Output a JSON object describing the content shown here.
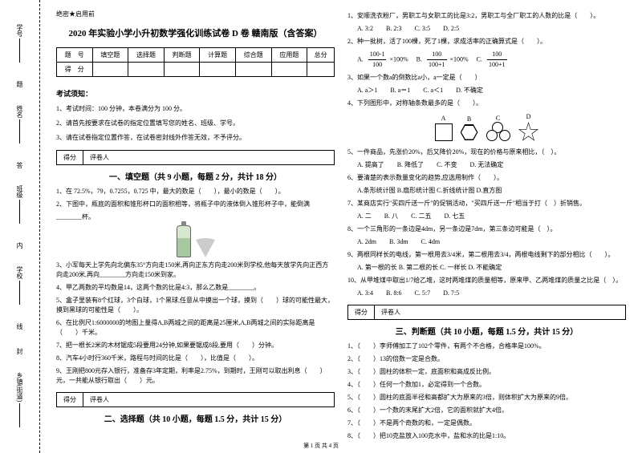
{
  "binding": {
    "fields": [
      "乡镇(街道)",
      "学校",
      "班级",
      "姓名",
      "学号"
    ],
    "chars": [
      "封",
      "线",
      "内",
      "不",
      "答",
      "题"
    ]
  },
  "secret": "绝密★启用前",
  "title": "2020 年实验小学小升初数学强化训练试卷 D 卷 赣南版（含答案）",
  "score_cols": [
    "题　号",
    "填空题",
    "选择题",
    "判断题",
    "计算题",
    "综合题",
    "应用题",
    "总分"
  ],
  "score_row": "得　分",
  "notice_title": "考试须知：",
  "notice": [
    "1、考试时间：100 分钟，本卷满分为 100 分。",
    "2、请首先按要求在试卷的指定位置填写您的姓名、班级、学号。",
    "3、请在试卷指定位置作答，在试卷密封线外作答无效，不予评分。"
  ],
  "scorebox": {
    "a": "得分",
    "b": "评卷人"
  },
  "sec1_title": "一、填空题（共 9 小题，每题 2 分，共计 18 分）",
  "sec1": {
    "q1": "1、在 72.5%，79，0.7255，0.725 中，最大的数是（　　），最小的数是（　　）。",
    "q2a": "2、下图中，瓶底的面积和锥形杯口的面积相等，将瓶子中的液体倒入锥形杯子中，能倒满",
    "q2b": "________杯。",
    "q3": "3、小军每天上学先向北偏东35°方向走150米,再向正东方向走200米到学校,他每天放学先向正西方向走200米,再向________方向走150米到家。",
    "q4": "4、甲乙两数的平均数是14，这两个数的比是4:3，那么乙数是________。",
    "q5": "5、盒子里装有8个红球，3个白球，1个黑球,任意从中摸出一个球，摸到（　　）球的可能性最大，摸到黑球的可能性是（　　）。",
    "q6": "6、在比例尺1:6000000的地图上量得A,B两城之间的距离是25厘米,A,B两城之间的实际距离是（　　）千米。",
    "q7": "7、把一根长2米的木材锯成5段要用24分钟,如果要锯成8段,要用（　　）分钟。",
    "q8": "8、汽车4小时行360千米，路程与时间的比是（　　），比值是（　　）。",
    "q9": "9、王刚把800元存入银行，准备存3年定期，利率是2.75%，到期时，王刚可以取出利息（　　）元，一共能从银行取出（　　）元。"
  },
  "sec2_title": "二、选择题（共 10 小题，每题 1.5 分，共计 15 分）",
  "sec2": {
    "q1": "1、安顺洗衣粉厂，男职工与女职工的比是3:2，男职工与全厂职工的人数的比是（　　）。",
    "q1_opts": "A. 3:2　　B. 2:3　　C. 3:5　　D. 2:5",
    "q2": "2、种一批树，活了100棵，死了1棵，求成活率的正确算式是（　　）。",
    "q2_a_t": "100-1",
    "q2_a_b": "100",
    "q2_b_t": "100",
    "q2_b_b": "100+1",
    "q2_c_t": "100",
    "q2_c_b": "100+1",
    "q2_x100": "×100%",
    "q3": "3、如果一个数a的倒数比a小，a一定是（　　）",
    "q3_opts": "A. a＞1　　B. a＝1　　C. a＜1　　D. 不确定",
    "q4": "4、下列图形中，对称轴条数最多的是（　　）。",
    "q4_labels": {
      "a": "A",
      "b": "B",
      "c": "C",
      "d": "D"
    },
    "q5": "5、一件商品，先涨价20%，后又降价20%，现在的价格与原来相比，（　）。",
    "q5_opts": "A. 提高了　　B. 降低了　　C. 不变　　D. 无法确定",
    "q6": "6、要清楚的表示数量变化的趋势,应选用制作（　　）。",
    "q6_opts": "A.条形统计图  B.扇形统计图  C.折线统计图  D.直方图",
    "q7": "7、某商店实行\"买四斤送一斤\"的促销活动，\"买四斤送一斤\"相当于打（　）折销售。",
    "q7_opts": "A. 二　　B. 八　　C. 二五　　D. 七五",
    "q8": "8、一个三角形的一条边是4dm，另一条边是7dm，第三条边可能是（　）。",
    "q8_opts": "A. 2dm　　B. 3dm　　C. 4dm",
    "q9": "9、两根同样长的电线，第一根用去3/4米，第二根用去3/4，两根电线剩下的部分相比（　　）。",
    "q9_opts": "A. 第一根的长  B. 第二根的长  C. 一样长  D. 不能确定",
    "q10": "10、从甲堆煤中取出1/7给乙堆，这时两堆煤的质量相等，原来甲、乙两堆煤的质量之比是（　）。",
    "q10_opts": "A. 3:4　　B. 8:6　　C. 5:7　　D. 7:5"
  },
  "sec3_title": "三、判断题（共 10 小题，每题 1.5 分，共计 15 分）",
  "sec3": {
    "q1": "1、（　　）李师傅加工了102个零件，有两个不合格，合格率是100%。",
    "q2": "2、（　　）13的倍数一定是合数。",
    "q3": "3、（　　）圆柱的体积一定，底面积和高成反比例。",
    "q4": "4、（　　）任何一个数加1，必定得到一个合数。",
    "q5": "5、（　　）圆柱的底面半径和高都扩大为原来的3倍，则体积扩大为原来的9倍。",
    "q6": "6、（　　）一个数的末尾扩大2倍，它的面积就扩大4倍。",
    "q7": "7、（　　）不是两个奇数的和，一定是偶数。",
    "q8": "8、（　　）把10克盐放入100克水中，盐和水的比是1:10。"
  },
  "footer": "第 1 页 共 4 页"
}
